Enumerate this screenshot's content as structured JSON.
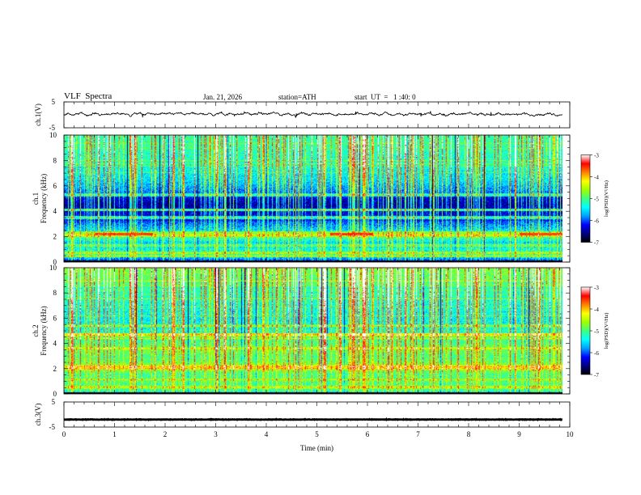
{
  "header": {
    "title": "VLF  Spectra",
    "date": "Jan. 21, 2026",
    "station": "station=ATH",
    "start_ut": "start  UT  =   1 :40: 0"
  },
  "chart_data": {
    "type": "heatmap",
    "title": "VLF  Spectra",
    "time_axis": {
      "label": "Time  (min)",
      "min": 0,
      "max": 10,
      "ticks": [
        "0",
        "1",
        "2",
        "3",
        "4",
        "5",
        "6",
        "7",
        "8",
        "9",
        "10"
      ],
      "data_end": 9.85
    },
    "panels": [
      {
        "name": "ch1-waveform",
        "kind": "line",
        "ylabel": "ch.1(V)",
        "ylim": [
          -5,
          5
        ],
        "tick_labels": [
          "5",
          "-5"
        ],
        "description_value": "noisy waveform around approximately 0.3 V with amplitude about ±1 V"
      },
      {
        "name": "ch1-spectrogram",
        "kind": "heatmap",
        "ylabel": "ch.1 Frequency (kHz)",
        "ylim": [
          0,
          10
        ],
        "tick_labels": [
          "0",
          "2",
          "4",
          "6",
          "8",
          "10"
        ],
        "colorbar": {
          "label": "log(PSD)(V²/Hz)",
          "range": [
            -7,
            -3
          ],
          "tick_labels": [
            "-3",
            "-4",
            "-5",
            "-6",
            "-7"
          ],
          "colormap": [
            "#000000",
            "#00007f",
            "#0000ff",
            "#00a0ff",
            "#00ffff",
            "#40ff80",
            "#a0ff00",
            "#ffff00",
            "#ff8000",
            "#ff0000",
            "#ffffff"
          ]
        },
        "mean_log_psd": {
          "freq_khz": [
            0,
            0.5,
            1,
            1.5,
            2,
            2.5,
            3,
            3.5,
            4,
            4.5,
            5,
            5.5,
            6,
            6.5,
            7,
            7.5,
            8,
            8.5,
            9,
            9.5,
            10
          ],
          "value": [
            -6.3,
            -5.3,
            -5.4,
            -5.6,
            -5.0,
            -5.6,
            -5.9,
            -6.3,
            -6.3,
            -6.5,
            -6.3,
            -5.9,
            -5.7,
            -5.5,
            -5.4,
            -5.3,
            -5.2,
            -5.2,
            -5.1,
            -5.1,
            -5.1
          ]
        },
        "lines_khz": [
          {
            "f": 0.45,
            "v": -4.6
          },
          {
            "f": 0.7,
            "v": -4.5
          },
          {
            "f": 1.3,
            "v": -4.9
          },
          {
            "f": 2.1,
            "v": -4.2
          },
          {
            "f": 2.3,
            "v": -4.6
          },
          {
            "f": 3.5,
            "v": -5.1
          },
          {
            "f": 4.1,
            "v": -5.0
          },
          {
            "f": 5.3,
            "v": -5.0
          }
        ],
        "bursts": [
          {
            "t0": 0.6,
            "t1": 1.75,
            "f": 2.2,
            "v": -3.6
          },
          {
            "t0": 5.25,
            "t1": 6.1,
            "f": 2.2,
            "v": -3.5
          },
          {
            "t0": 9.0,
            "t1": 9.85,
            "f": 2.2,
            "v": -3.6
          }
        ]
      },
      {
        "name": "ch2-spectrogram",
        "kind": "heatmap",
        "ylabel": "ch.2 Frequency (kHz)",
        "ylim": [
          0,
          10
        ],
        "tick_labels": [
          "0",
          "2",
          "4",
          "6",
          "8",
          "10"
        ],
        "colorbar": {
          "label": "log(PSD)(V²/Hz)",
          "range": [
            -7,
            -3
          ],
          "tick_labels": [
            "-3",
            "-4",
            "-5",
            "-6",
            "-7"
          ],
          "colormap": [
            "#000000",
            "#00007f",
            "#0000ff",
            "#00a0ff",
            "#00ffff",
            "#40ff80",
            "#a0ff00",
            "#ffff00",
            "#ff8000",
            "#ff0000",
            "#ffffff"
          ]
        },
        "mean_log_psd": {
          "freq_khz": [
            0,
            0.5,
            1,
            1.5,
            2,
            2.5,
            3,
            3.5,
            4,
            4.5,
            5,
            5.5,
            6,
            6.5,
            7,
            7.5,
            8,
            8.5,
            9,
            9.5,
            10
          ],
          "value": [
            -5.4,
            -5.0,
            -5.0,
            -5.1,
            -4.6,
            -4.9,
            -5.0,
            -4.8,
            -5.0,
            -5.2,
            -5.3,
            -5.4,
            -5.4,
            -5.3,
            -5.3,
            -5.2,
            -5.1,
            -5.0,
            -4.9,
            -4.8,
            -4.8
          ]
        },
        "lines_khz": [
          {
            "f": 0.5,
            "v": -4.3
          },
          {
            "f": 1.1,
            "v": -4.5
          },
          {
            "f": 2.0,
            "v": -4.0
          },
          {
            "f": 2.2,
            "v": -4.2
          },
          {
            "f": 3.6,
            "v": -4.3
          },
          {
            "f": 4.4,
            "v": -4.5
          },
          {
            "f": 4.7,
            "v": -4.0
          },
          {
            "f": 5.4,
            "v": -4.6
          }
        ],
        "bursts": []
      },
      {
        "name": "ch3-waveform",
        "kind": "line",
        "ylabel": "ch.3(V)",
        "ylim": [
          -5,
          5
        ],
        "tick_labels": [
          "5",
          "-5"
        ],
        "description_value": "flat trace at about -2 V"
      }
    ]
  }
}
